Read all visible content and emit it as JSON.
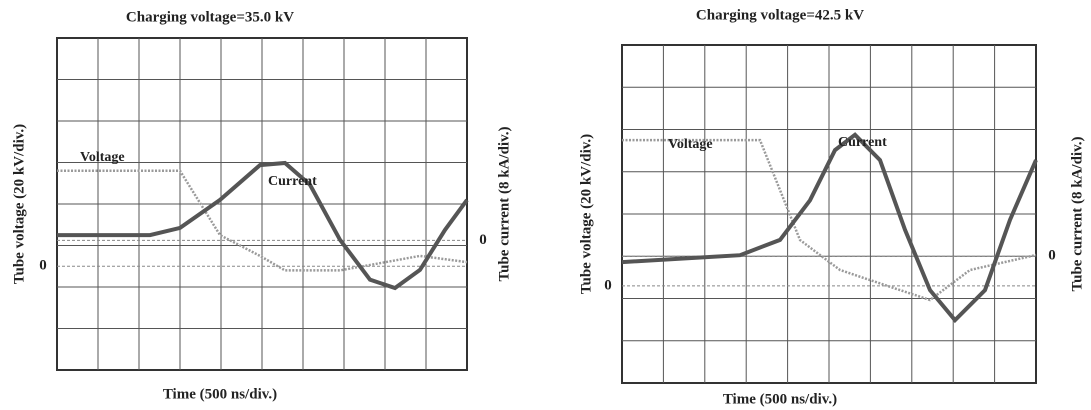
{
  "chart_data": [
    {
      "type": "line",
      "title": "Charging voltage=35.0 kV",
      "x_label": "Time (500 ns/div.)",
      "y_label": "Tube voltage (20 kV/div.)",
      "y2_label": "Tube current (8 kA/div.)",
      "xlim": [
        0,
        5000
      ],
      "ylim": [
        -50,
        110
      ],
      "yticks": [
        0
      ],
      "y2lim": [
        -25,
        39
      ],
      "y2ticks": [
        0
      ],
      "grid": true,
      "series": [
        {
          "name": "Voltage",
          "color": "#9a9a9a",
          "x": [
            0,
            1500,
            1988,
            2476,
            2780,
            3451,
            4427,
            5000
          ],
          "values": [
            46,
            46,
            15,
            5,
            -2,
            -2,
            5,
            2
          ]
        },
        {
          "name": "Current",
          "color": "#555555",
          "axis": "y2",
          "x": [
            0,
            1134,
            1500,
            1988,
            2476,
            2780,
            3085,
            3451,
            3817,
            4122,
            4427,
            4732,
            5000
          ],
          "values": [
            1.0,
            1.0,
            2.4,
            7.8,
            14.5,
            14.9,
            10.7,
            0.1,
            -7.6,
            -9.2,
            -5.7,
            2.0,
            7.8
          ]
        }
      ]
    },
    {
      "type": "line",
      "title": "Charging voltage=42.5 kV",
      "x_label": "Time (500 ns/div.)",
      "y_label": "Tube voltage (20 kV/div.)",
      "y2_label": "Tube current (8 kA/div.)",
      "xlim": [
        0,
        5000
      ],
      "ylim": [
        -46,
        114
      ],
      "yticks": [
        0
      ],
      "y2lim": [
        -24,
        40
      ],
      "y2ticks": [
        0
      ],
      "grid": true,
      "series": [
        {
          "name": "Voltage",
          "color": "#9a9a9a",
          "x": [
            0,
            1667,
            2150,
            2633,
            3357,
            3720,
            4203,
            5000
          ],
          "values": [
            69,
            69,
            21.7,
            7.5,
            -2,
            -6.7,
            7.5,
            14.6
          ]
        },
        {
          "name": "Current",
          "color": "#555555",
          "axis": "y2",
          "x": [
            0,
            1425,
            1908,
            2271,
            2572,
            2814,
            3116,
            3418,
            3720,
            4022,
            4384,
            4686,
            5000
          ],
          "values": [
            -1.1,
            0.2,
            3.1,
            10.6,
            20.1,
            23,
            18.2,
            5,
            -6.4,
            -12.1,
            -6.4,
            6.9,
            18.2
          ]
        }
      ]
    }
  ]
}
